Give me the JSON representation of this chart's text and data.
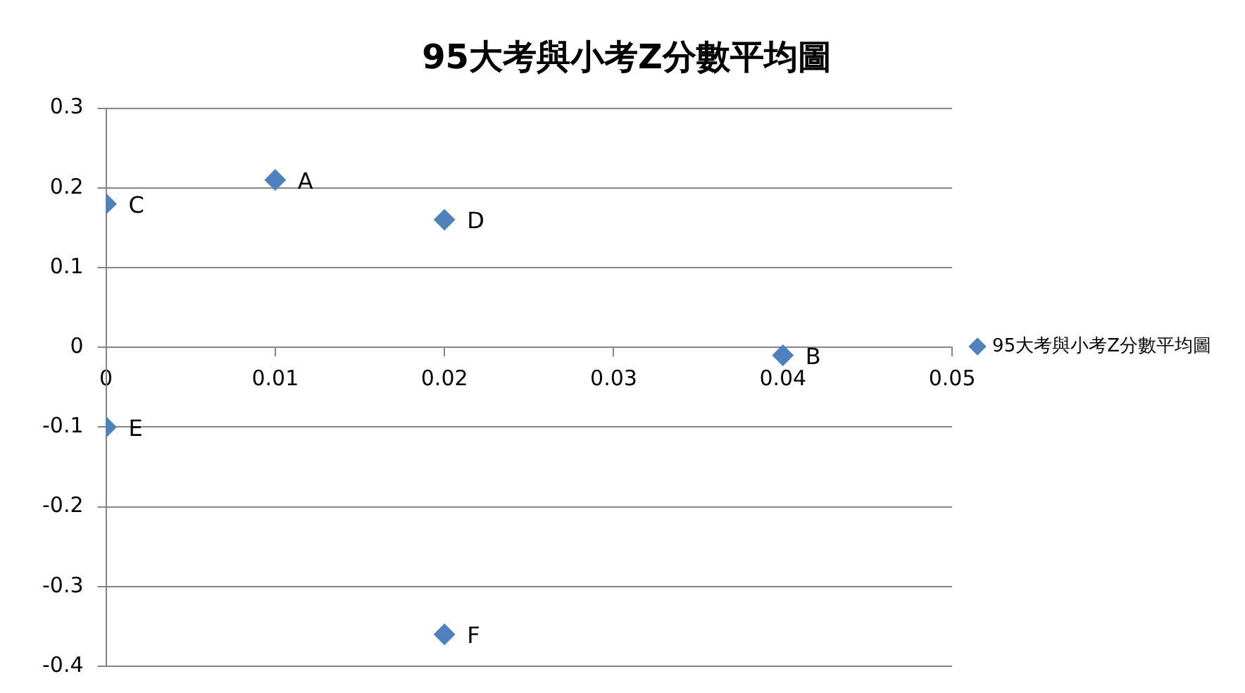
{
  "chart_data": {
    "type": "scatter",
    "title": "95大考與小考Z分數平均圖",
    "series": [
      {
        "name": "95大考與小考Z分數平均圖",
        "color": "#4f81bd",
        "x": [
          0.01,
          0.04,
          0,
          0.02,
          0,
          0.02
        ],
        "values": [
          0.21,
          -0.01,
          0.18,
          0.16,
          -0.1,
          -0.36
        ],
        "value_labels": [
          "A",
          "B",
          "C",
          "D",
          "E",
          "F"
        ]
      }
    ],
    "xlim": [
      0,
      0.05
    ],
    "xticks": [
      0,
      0.01,
      0.02,
      0.03,
      0.04,
      0.05
    ],
    "ylim": [
      -0.4,
      0.3
    ],
    "yticks": [
      -0.4,
      -0.3,
      -0.2,
      -0.1,
      0,
      0.1,
      0.2,
      0.3
    ],
    "grid": "y",
    "legend": "right",
    "marker": "diamond"
  }
}
